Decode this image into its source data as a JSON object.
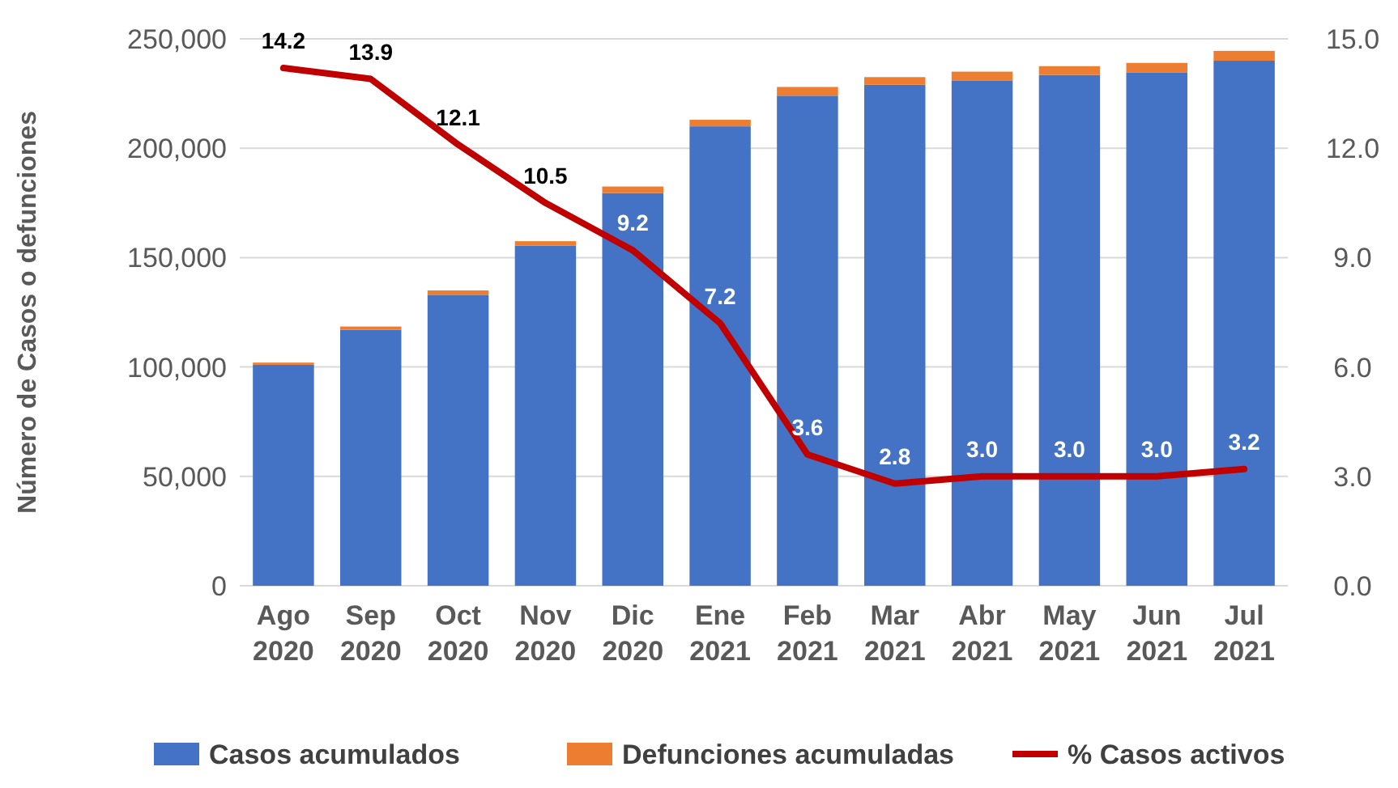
{
  "chart_data": {
    "type": "bar",
    "stacked": true,
    "categories": [
      "Ago\n2020",
      "Sep\n2020",
      "Oct\n2020",
      "Nov\n2020",
      "Dic\n2020",
      "Ene\n2021",
      "Feb\n2021",
      "Mar\n2021",
      "Abr\n2021",
      "May\n2021",
      "Jun\n2021",
      "Jul\n2021"
    ],
    "series": [
      {
        "name": "Casos acumulados",
        "color": "#4472c4",
        "values": [
          101000,
          117000,
          133000,
          155500,
          179500,
          210000,
          224000,
          229000,
          231000,
          233500,
          234500,
          240000
        ]
      },
      {
        "name": "Defunciones acumuladas",
        "color": "#ed7d31",
        "values": [
          1000,
          1500,
          2000,
          2000,
          3000,
          3000,
          4000,
          3500,
          4000,
          4000,
          4500,
          4500
        ]
      },
      {
        "name": "% Casos activos",
        "type": "line",
        "axis": "y2",
        "color": "#c00000",
        "values": [
          14.2,
          13.9,
          12.1,
          10.5,
          9.2,
          7.2,
          3.6,
          2.8,
          3.0,
          3.0,
          3.0,
          3.2
        ],
        "value_labels": [
          "14.2",
          "13.9",
          "12.1",
          "10.5",
          "9.2",
          "7.2",
          "3.6",
          "2.8",
          "3.0",
          "3.0",
          "3.0",
          "3.2"
        ]
      }
    ],
    "ylabel": "Número de Casos o defunciones",
    "ylim": [
      0,
      250000
    ],
    "yticks": [
      {
        "value": 0,
        "label": "0"
      },
      {
        "value": 50000,
        "label": "50,000"
      },
      {
        "value": 100000,
        "label": "100,000"
      },
      {
        "value": 150000,
        "label": "150,000"
      },
      {
        "value": 200000,
        "label": "200,000"
      },
      {
        "value": 250000,
        "label": "250,000"
      }
    ],
    "y2lim": [
      0,
      15
    ],
    "y2ticks": [
      {
        "value": 0,
        "label": "0.0"
      },
      {
        "value": 3,
        "label": "3.0"
      },
      {
        "value": 6,
        "label": "6.0"
      },
      {
        "value": 9,
        "label": "9.0"
      },
      {
        "value": 12,
        "label": "12.0"
      },
      {
        "value": 15,
        "label": "15.0"
      }
    ],
    "grid": "y",
    "legend": "bottom"
  }
}
